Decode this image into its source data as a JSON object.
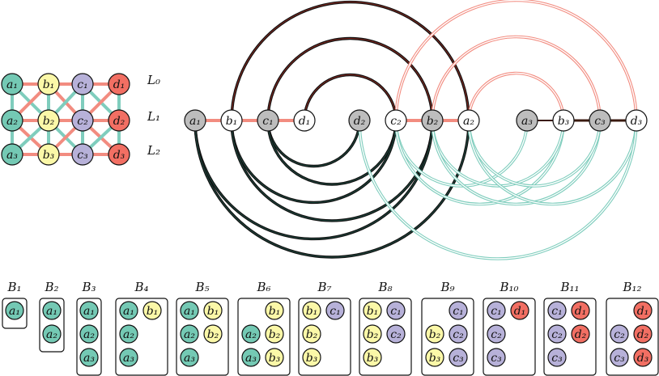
{
  "grid": {
    "rows": [
      [
        "a₁",
        "b₁",
        "c₁",
        "d₁"
      ],
      [
        "a₂",
        "b₂",
        "c₂",
        "d₂"
      ],
      [
        "a₃",
        "b₃",
        "c₃",
        "d₃"
      ]
    ],
    "layers": [
      "L₀",
      "L₁",
      "L₂"
    ]
  },
  "arc_nodes": [
    "a₁",
    "b₁",
    "c₁",
    "d₁",
    "d₂",
    "c₂",
    "b₂",
    "a₂",
    "a₃",
    "b₃",
    "c₃",
    "d₃"
  ],
  "blocks": [
    {
      "title": "B₁",
      "items": [
        "a₁"
      ]
    },
    {
      "title": "B₂",
      "items": [
        "a₁",
        "a₂"
      ]
    },
    {
      "title": "B₃",
      "items": [
        "a₁",
        "a₂",
        "a₃"
      ]
    },
    {
      "title": "B₄",
      "items": [
        "a₁",
        "b₁",
        "a₂",
        "a₃"
      ]
    },
    {
      "title": "B₅",
      "items": [
        "a₁",
        "b₁",
        "a₂",
        "b₂",
        "a₃"
      ]
    },
    {
      "title": "B₆",
      "items": [
        "b₁",
        "a₂",
        "b₂",
        "a₃",
        "b₃"
      ]
    },
    {
      "title": "B₇",
      "items": [
        "b₁",
        "c₁",
        "b₂",
        "b₃"
      ]
    },
    {
      "title": "B₈",
      "items": [
        "b₁",
        "c₁",
        "b₂",
        "c₂",
        "b₃"
      ]
    },
    {
      "title": "B₉",
      "items": [
        "c₁",
        "b₂",
        "c₂",
        "b₃",
        "c₃"
      ]
    },
    {
      "title": "B₁₀",
      "items": [
        "c₁",
        "d₁",
        "c₂",
        "c₃"
      ]
    },
    {
      "title": "B₁₁",
      "items": [
        "c₁",
        "d₁",
        "c₂",
        "d₂",
        "c₃"
      ]
    },
    {
      "title": "B₁₂",
      "items": [
        "d₁",
        "c₂",
        "d₂",
        "c₃",
        "d₃"
      ]
    }
  ]
}
